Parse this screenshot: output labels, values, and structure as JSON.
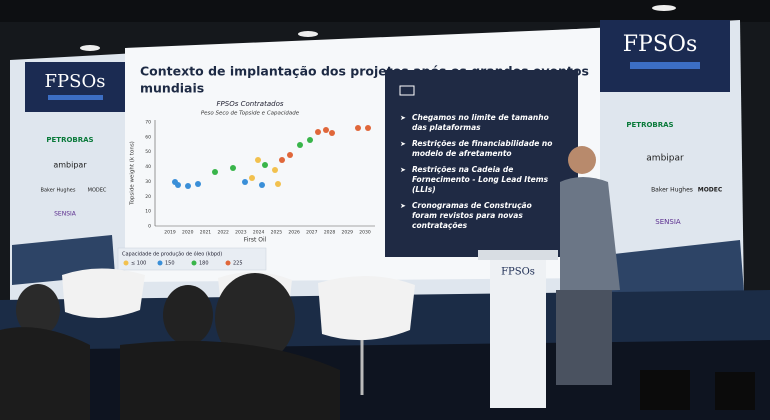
{
  "event_logo": "FPSOs",
  "slide": {
    "title_lines": [
      "Contexto de implantação dos projetos após os grandes eventos",
      "mundiais"
    ],
    "chart": {
      "title": "FPSOs Contratados",
      "subtitle": "Peso Seco de Topside e Capacidade",
      "y_label": "Topside weight (k tons)",
      "x_label": "First Oil",
      "yticks": [
        "0",
        "10",
        "20",
        "30",
        "40",
        "50",
        "60",
        "70"
      ],
      "xticks": [
        "2019",
        "2020",
        "2021",
        "2022",
        "2023",
        "2024",
        "2025",
        "2026",
        "2027",
        "2028",
        "2029",
        "2030"
      ],
      "legend_title": "Capacidade de produção de óleo (kbpd)",
      "legend": [
        "≤ 100",
        "150",
        "180",
        "225"
      ]
    },
    "bullets": [
      [
        "Chegamos no limite de tamanho",
        "das plataformas"
      ],
      [
        "Restrições de financiabilidade no",
        "modelo de afretamento"
      ],
      [
        "Restrições na Cadeia de",
        "Fornecimento - Long Lead Items",
        "(LLIs)"
      ],
      [
        "Cronogramas de Construção",
        "foram revistos para novas",
        "contratações"
      ]
    ]
  },
  "sponsors": [
    "PETROBRAS",
    "ambipar",
    "Baker Hughes",
    "MODEC",
    "SENSIA"
  ]
}
